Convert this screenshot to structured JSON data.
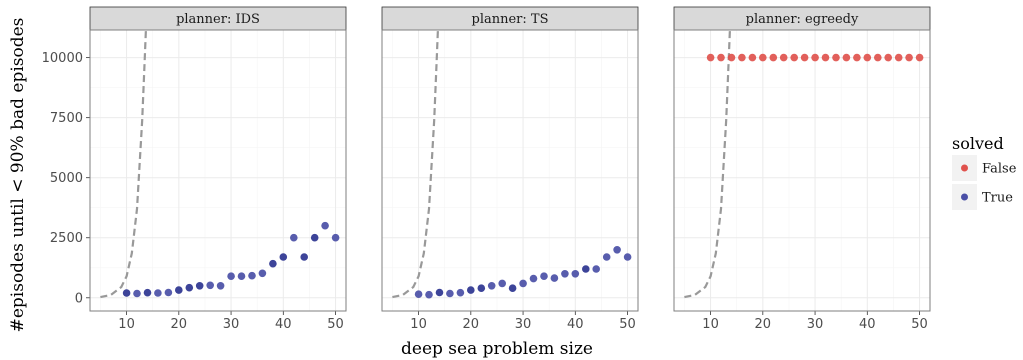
{
  "chart_data": {
    "type": "scatter",
    "xlabel": "deep sea problem size",
    "ylabel": "#episodes until < 90% bad episodes",
    "xlim": [
      3,
      52
    ],
    "ylim": [
      -550,
      11150
    ],
    "x_ticks": [
      10,
      20,
      30,
      40,
      50
    ],
    "y_ticks": [
      0,
      2500,
      5000,
      7500,
      10000
    ],
    "grid": true,
    "legend": {
      "title": "solved",
      "position": "right",
      "entries": [
        {
          "label": "False",
          "color": "#e0524d"
        },
        {
          "label": "True",
          "color": "#4a4fa6"
        }
      ]
    },
    "reference_curve": {
      "style": "dashed",
      "color": "#999999",
      "description_points": [
        {
          "x": 5,
          "y": 30
        },
        {
          "x": 7,
          "y": 120
        },
        {
          "x": 9,
          "y": 450
        },
        {
          "x": 10,
          "y": 900
        },
        {
          "x": 11,
          "y": 1850
        },
        {
          "x": 12,
          "y": 3700
        },
        {
          "x": 13,
          "y": 7400
        },
        {
          "x": 13.4,
          "y": 9500
        },
        {
          "x": 13.7,
          "y": 11150
        }
      ]
    },
    "facets": [
      {
        "strip_label": "planner: IDS",
        "points": [
          {
            "x": 10,
            "y": 200,
            "solved": "True",
            "dark": true
          },
          {
            "x": 12,
            "y": 180,
            "solved": "True",
            "dark": false
          },
          {
            "x": 14,
            "y": 210,
            "solved": "True",
            "dark": true
          },
          {
            "x": 16,
            "y": 200,
            "solved": "True",
            "dark": false
          },
          {
            "x": 18,
            "y": 220,
            "solved": "True",
            "dark": false
          },
          {
            "x": 20,
            "y": 320,
            "solved": "True",
            "dark": true
          },
          {
            "x": 22,
            "y": 420,
            "solved": "True",
            "dark": true
          },
          {
            "x": 24,
            "y": 500,
            "solved": "True",
            "dark": true
          },
          {
            "x": 26,
            "y": 520,
            "solved": "True",
            "dark": false
          },
          {
            "x": 28,
            "y": 500,
            "solved": "True",
            "dark": false
          },
          {
            "x": 30,
            "y": 900,
            "solved": "True",
            "dark": false
          },
          {
            "x": 32,
            "y": 900,
            "solved": "True",
            "dark": false
          },
          {
            "x": 34,
            "y": 920,
            "solved": "True",
            "dark": false
          },
          {
            "x": 36,
            "y": 1020,
            "solved": "True",
            "dark": false
          },
          {
            "x": 38,
            "y": 1420,
            "solved": "True",
            "dark": true
          },
          {
            "x": 40,
            "y": 1700,
            "solved": "True",
            "dark": true
          },
          {
            "x": 42,
            "y": 2500,
            "solved": "True",
            "dark": false
          },
          {
            "x": 44,
            "y": 1700,
            "solved": "True",
            "dark": true
          },
          {
            "x": 46,
            "y": 2500,
            "solved": "True",
            "dark": true
          },
          {
            "x": 48,
            "y": 3000,
            "solved": "True",
            "dark": false
          },
          {
            "x": 50,
            "y": 2500,
            "solved": "True",
            "dark": false
          }
        ]
      },
      {
        "strip_label": "planner: TS",
        "points": [
          {
            "x": 10,
            "y": 150,
            "solved": "True",
            "dark": false
          },
          {
            "x": 12,
            "y": 130,
            "solved": "True",
            "dark": false
          },
          {
            "x": 14,
            "y": 220,
            "solved": "True",
            "dark": true
          },
          {
            "x": 16,
            "y": 180,
            "solved": "True",
            "dark": false
          },
          {
            "x": 18,
            "y": 210,
            "solved": "True",
            "dark": false
          },
          {
            "x": 20,
            "y": 320,
            "solved": "True",
            "dark": true
          },
          {
            "x": 22,
            "y": 400,
            "solved": "True",
            "dark": true
          },
          {
            "x": 24,
            "y": 500,
            "solved": "True",
            "dark": false
          },
          {
            "x": 26,
            "y": 600,
            "solved": "True",
            "dark": false
          },
          {
            "x": 28,
            "y": 400,
            "solved": "True",
            "dark": true
          },
          {
            "x": 30,
            "y": 600,
            "solved": "True",
            "dark": false
          },
          {
            "x": 32,
            "y": 800,
            "solved": "True",
            "dark": false
          },
          {
            "x": 34,
            "y": 900,
            "solved": "True",
            "dark": false
          },
          {
            "x": 36,
            "y": 820,
            "solved": "True",
            "dark": false
          },
          {
            "x": 38,
            "y": 1000,
            "solved": "True",
            "dark": false
          },
          {
            "x": 40,
            "y": 1000,
            "solved": "True",
            "dark": false
          },
          {
            "x": 42,
            "y": 1200,
            "solved": "True",
            "dark": true
          },
          {
            "x": 44,
            "y": 1200,
            "solved": "True",
            "dark": false
          },
          {
            "x": 46,
            "y": 1700,
            "solved": "True",
            "dark": false
          },
          {
            "x": 48,
            "y": 2000,
            "solved": "True",
            "dark": false
          },
          {
            "x": 50,
            "y": 1700,
            "solved": "True",
            "dark": false
          }
        ]
      },
      {
        "strip_label": "planner: egreedy",
        "points": [
          {
            "x": 10,
            "y": 10000,
            "solved": "False"
          },
          {
            "x": 12,
            "y": 10000,
            "solved": "False"
          },
          {
            "x": 14,
            "y": 10000,
            "solved": "False"
          },
          {
            "x": 16,
            "y": 10000,
            "solved": "False"
          },
          {
            "x": 18,
            "y": 10000,
            "solved": "False"
          },
          {
            "x": 20,
            "y": 10000,
            "solved": "False"
          },
          {
            "x": 22,
            "y": 10000,
            "solved": "False"
          },
          {
            "x": 24,
            "y": 10000,
            "solved": "False"
          },
          {
            "x": 26,
            "y": 10000,
            "solved": "False"
          },
          {
            "x": 28,
            "y": 10000,
            "solved": "False"
          },
          {
            "x": 30,
            "y": 10000,
            "solved": "False"
          },
          {
            "x": 32,
            "y": 10000,
            "solved": "False"
          },
          {
            "x": 34,
            "y": 10000,
            "solved": "False"
          },
          {
            "x": 36,
            "y": 10000,
            "solved": "False"
          },
          {
            "x": 38,
            "y": 10000,
            "solved": "False"
          },
          {
            "x": 40,
            "y": 10000,
            "solved": "False"
          },
          {
            "x": 42,
            "y": 10000,
            "solved": "False"
          },
          {
            "x": 44,
            "y": 10000,
            "solved": "False"
          },
          {
            "x": 46,
            "y": 10000,
            "solved": "False"
          },
          {
            "x": 48,
            "y": 10000,
            "solved": "False"
          },
          {
            "x": 50,
            "y": 10000,
            "solved": "False"
          }
        ]
      }
    ]
  },
  "colors": {
    "true_point": "#4a4fa6",
    "true_point_dark": "#2d3490",
    "false_point": "#e0524d",
    "reference_curve": "#999999",
    "strip_fill": "#d9d9d9",
    "panel_border": "#7f7f7f",
    "grid_major": "#ebebeb",
    "grid_minor": "#f5f5f5"
  }
}
